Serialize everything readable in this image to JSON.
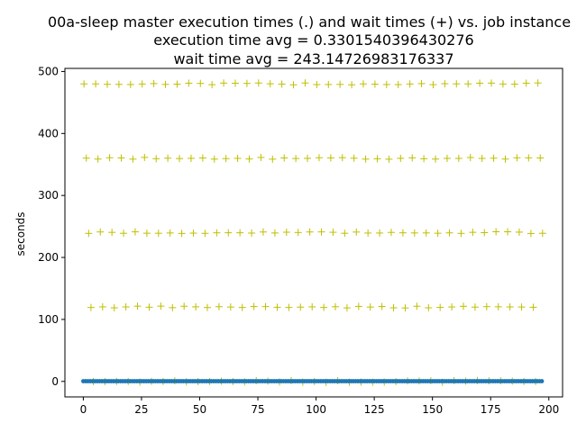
{
  "chart_data": {
    "type": "scatter",
    "title_lines": [
      "00a-sleep master execution times (.) and wait times (+) vs. job instance",
      "execution time avg = 0.3301540396430276",
      "wait time avg = 243.14726983176337"
    ],
    "xlabel": "",
    "ylabel": "seconds",
    "xlim": [
      -7.9,
      205.9
    ],
    "ylim": [
      -25,
      505
    ],
    "x_ticks": [
      0,
      25,
      50,
      75,
      100,
      125,
      150,
      175,
      200
    ],
    "y_ticks": [
      0,
      100,
      200,
      300,
      400,
      500
    ],
    "grid": false,
    "legend": "none",
    "series": [
      {
        "marker": "dot",
        "color": "#1f77b4",
        "x_range": [
          0,
          197
        ],
        "y_value": 0.33
      },
      {
        "marker": "plus",
        "color": "#bfbf00",
        "x_range": [
          0,
          197
        ],
        "y_levels": [
          480,
          360,
          240,
          120,
          0
        ]
      }
    ]
  }
}
